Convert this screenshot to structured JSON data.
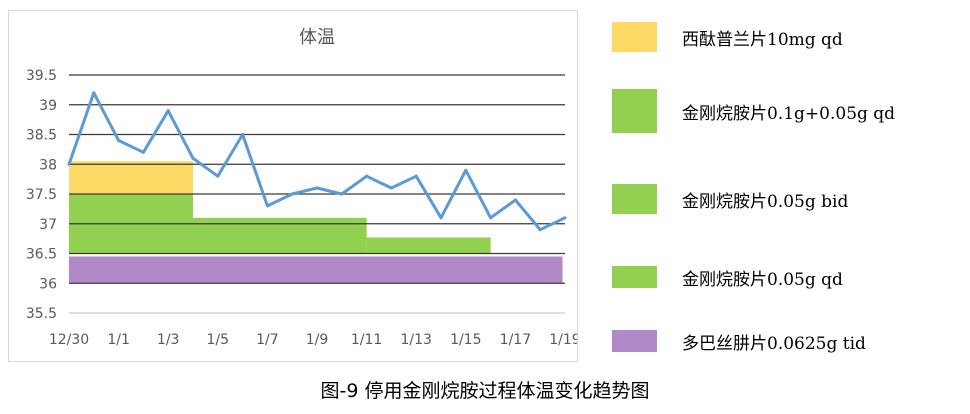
{
  "chart_data": {
    "type": "line",
    "title": "体温",
    "xlabel": "",
    "ylabel": "",
    "ylim": [
      35.5,
      39.5
    ],
    "yticks": [
      "35.5",
      "36",
      "36.5",
      "37",
      "37.5",
      "38",
      "38.5",
      "39",
      "39.5"
    ],
    "xticks": [
      "12/30",
      "1/1",
      "1/3",
      "1/5",
      "1/7",
      "1/9",
      "1/11",
      "1/13",
      "1/15",
      "1/17",
      "1/19"
    ],
    "grid": true,
    "x": [
      "12/30",
      "12/31",
      "1/1",
      "1/2",
      "1/3",
      "1/4",
      "1/5",
      "1/6",
      "1/7",
      "1/8",
      "1/9",
      "1/10",
      "1/11",
      "1/12",
      "1/13",
      "1/14",
      "1/15",
      "1/16",
      "1/17",
      "1/18",
      "1/19"
    ],
    "series": [
      {
        "values": [
          38.0,
          39.2,
          38.4,
          38.2,
          38.9,
          38.1,
          37.8,
          38.5,
          37.3,
          37.5,
          37.6,
          37.5,
          37.8,
          37.6,
          37.8,
          37.1,
          37.9,
          37.1,
          37.4,
          36.9,
          37.1
        ],
        "color": "#5b9bd5"
      }
    ],
    "medication_bands": [
      {
        "name": "西酞普兰片10mg qd",
        "from": "12/30",
        "to": "1/4",
        "low": 37.5,
        "high": 38.05,
        "color": "#ffd966"
      },
      {
        "name": "金刚烷胺片0.1g+0.05g qd",
        "from": "12/30",
        "to": "1/4",
        "low": 36.5,
        "high": 37.5,
        "color": "#92d050"
      },
      {
        "name": "金刚烷胺片0.05g bid",
        "from": "1/4",
        "to": "1/11",
        "low": 36.5,
        "high": 37.1,
        "color": "#92d050"
      },
      {
        "name": "金刚烷胺片0.05g qd",
        "from": "1/11",
        "to": "1/16",
        "low": 36.5,
        "high": 36.77,
        "color": "#92d050"
      },
      {
        "name": "多巴丝肼片0.0625g tid",
        "from": "12/30",
        "to": "1/18.9",
        "low": 36.0,
        "high": 36.45,
        "color": "#b08ac8"
      }
    ]
  },
  "legend": [
    {
      "label": "西酞普兰片10mg qd",
      "color": "#ffd966"
    },
    {
      "label": "金刚烷胺片0.1g+0.05g qd",
      "color": "#92d050"
    },
    {
      "label": "金刚烷胺片0.05g bid",
      "color": "#92d050"
    },
    {
      "label": "金刚烷胺片0.05g qd",
      "color": "#92d050"
    },
    {
      "label": "多巴丝肼片0.0625g tid",
      "color": "#b08ac8"
    }
  ],
  "caption": "图-9 停用金刚烷胺过程体温变化趋势图"
}
